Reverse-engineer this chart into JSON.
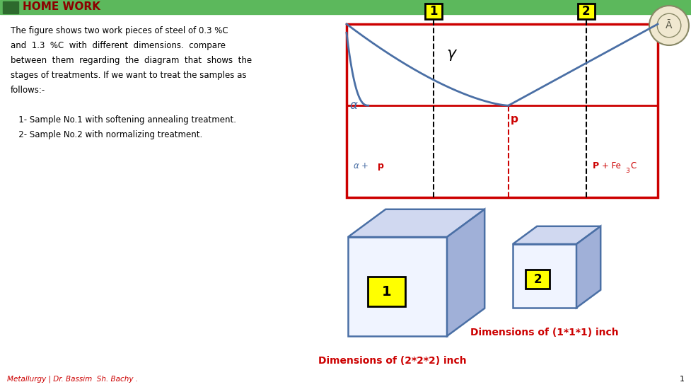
{
  "bg_color": "#ffffff",
  "title_bar_color": "#5cb85c",
  "title_dark_green": "#2d6a2d",
  "title_text": "HOME WORK",
  "title_color": "#8B0000",
  "body_lines": [
    "The figure shows two work pieces of steel of 0.3 %C",
    "and  1.3  %C  with  different  dimensions.  compare",
    "between  them  regarding  the  diagram  that  shows  the",
    "stages of treatments. If we want to treat the samples as",
    "follows:-",
    "",
    "   1- Sample No.1 with softening annealing treatment.",
    "   2- Sample No.2 with normalizing treatment."
  ],
  "footer_text": "Metallurgy | Dr. Bassim  Sh. Bachy .",
  "footer_color": "#cc0000",
  "page_number": "1",
  "red_color": "#cc0000",
  "blue_color": "#4a6fa5",
  "yellow_bg": "#ffff00",
  "dim1_text": "Dimensions of (2*2*2) inch",
  "dim2_text": "Dimensions of (1*1*1) inch",
  "dim_color": "#cc0000",
  "cube_edge_color": "#4a6fa5",
  "cube_top_color": "#d0d8f0",
  "cube_side_color": "#a0b0d8",
  "cube_front_color": "#f0f4ff"
}
